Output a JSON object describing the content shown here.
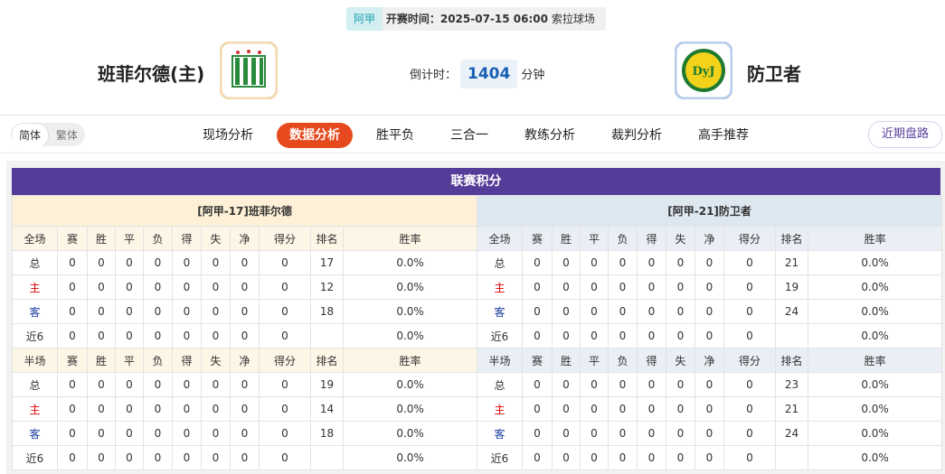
{
  "header": {
    "league": "阿甲",
    "time_label": "开赛时间：",
    "time": "2025-07-15 06:00",
    "venue": "索拉球场",
    "home": "班菲尔德(主)",
    "away": "防卫者",
    "countdown_label": "倒计时：",
    "countdown": 1404,
    "countdown_unit": "分钟"
  },
  "nav": {
    "lang": [
      "简体",
      "繁体"
    ],
    "tabs": [
      "现场分析",
      "数据分析",
      "胜平负",
      "三合一",
      "教练分析",
      "裁判分析",
      "高手推荐"
    ],
    "active": 1,
    "right": "近期盘路"
  },
  "table": {
    "title": "联赛积分",
    "home": {
      "title": "[阿甲-17]班菲尔德",
      "sections": [
        {
          "header": [
            "全场",
            "赛",
            "胜",
            "平",
            "负",
            "得",
            "失",
            "净",
            "得分",
            "排名",
            "胜率"
          ],
          "rows": [
            [
              "总",
              0,
              0,
              0,
              0,
              0,
              0,
              0,
              0,
              17,
              "0.0%"
            ],
            [
              "主",
              0,
              0,
              0,
              0,
              0,
              0,
              0,
              0,
              12,
              "0.0%"
            ],
            [
              "客",
              0,
              0,
              0,
              0,
              0,
              0,
              0,
              0,
              18,
              "0.0%"
            ],
            [
              "近6",
              0,
              0,
              0,
              0,
              0,
              0,
              0,
              0,
              null,
              "0.0%"
            ]
          ]
        },
        {
          "header": [
            "半场",
            "赛",
            "胜",
            "平",
            "负",
            "得",
            "失",
            "净",
            "得分",
            "排名",
            "胜率"
          ],
          "rows": [
            [
              "总",
              0,
              0,
              0,
              0,
              0,
              0,
              0,
              0,
              19,
              "0.0%"
            ],
            [
              "主",
              0,
              0,
              0,
              0,
              0,
              0,
              0,
              0,
              14,
              "0.0%"
            ],
            [
              "客",
              0,
              0,
              0,
              0,
              0,
              0,
              0,
              0,
              18,
              "0.0%"
            ],
            [
              "近6",
              0,
              0,
              0,
              0,
              0,
              0,
              0,
              0,
              null,
              "0.0%"
            ]
          ]
        }
      ]
    },
    "away": {
      "title": "[阿甲-21]防卫者",
      "sections": [
        {
          "header": [
            "全场",
            "赛",
            "胜",
            "平",
            "负",
            "得",
            "失",
            "净",
            "得分",
            "排名",
            "胜率"
          ],
          "rows": [
            [
              "总",
              0,
              0,
              0,
              0,
              0,
              0,
              0,
              0,
              21,
              "0.0%"
            ],
            [
              "主",
              0,
              0,
              0,
              0,
              0,
              0,
              0,
              0,
              19,
              "0.0%"
            ],
            [
              "客",
              0,
              0,
              0,
              0,
              0,
              0,
              0,
              0,
              24,
              "0.0%"
            ],
            [
              "近6",
              0,
              0,
              0,
              0,
              0,
              0,
              0,
              0,
              null,
              "0.0%"
            ]
          ]
        },
        {
          "header": [
            "半场",
            "赛",
            "胜",
            "平",
            "负",
            "得",
            "失",
            "净",
            "得分",
            "排名",
            "胜率"
          ],
          "rows": [
            [
              "总",
              0,
              0,
              0,
              0,
              0,
              0,
              0,
              0,
              23,
              "0.0%"
            ],
            [
              "主",
              0,
              0,
              0,
              0,
              0,
              0,
              0,
              0,
              21,
              "0.0%"
            ],
            [
              "客",
              0,
              0,
              0,
              0,
              0,
              0,
              0,
              0,
              24,
              "0.0%"
            ],
            [
              "近6",
              0,
              0,
              0,
              0,
              0,
              0,
              0,
              0,
              null,
              "0.0%"
            ]
          ]
        }
      ]
    }
  }
}
